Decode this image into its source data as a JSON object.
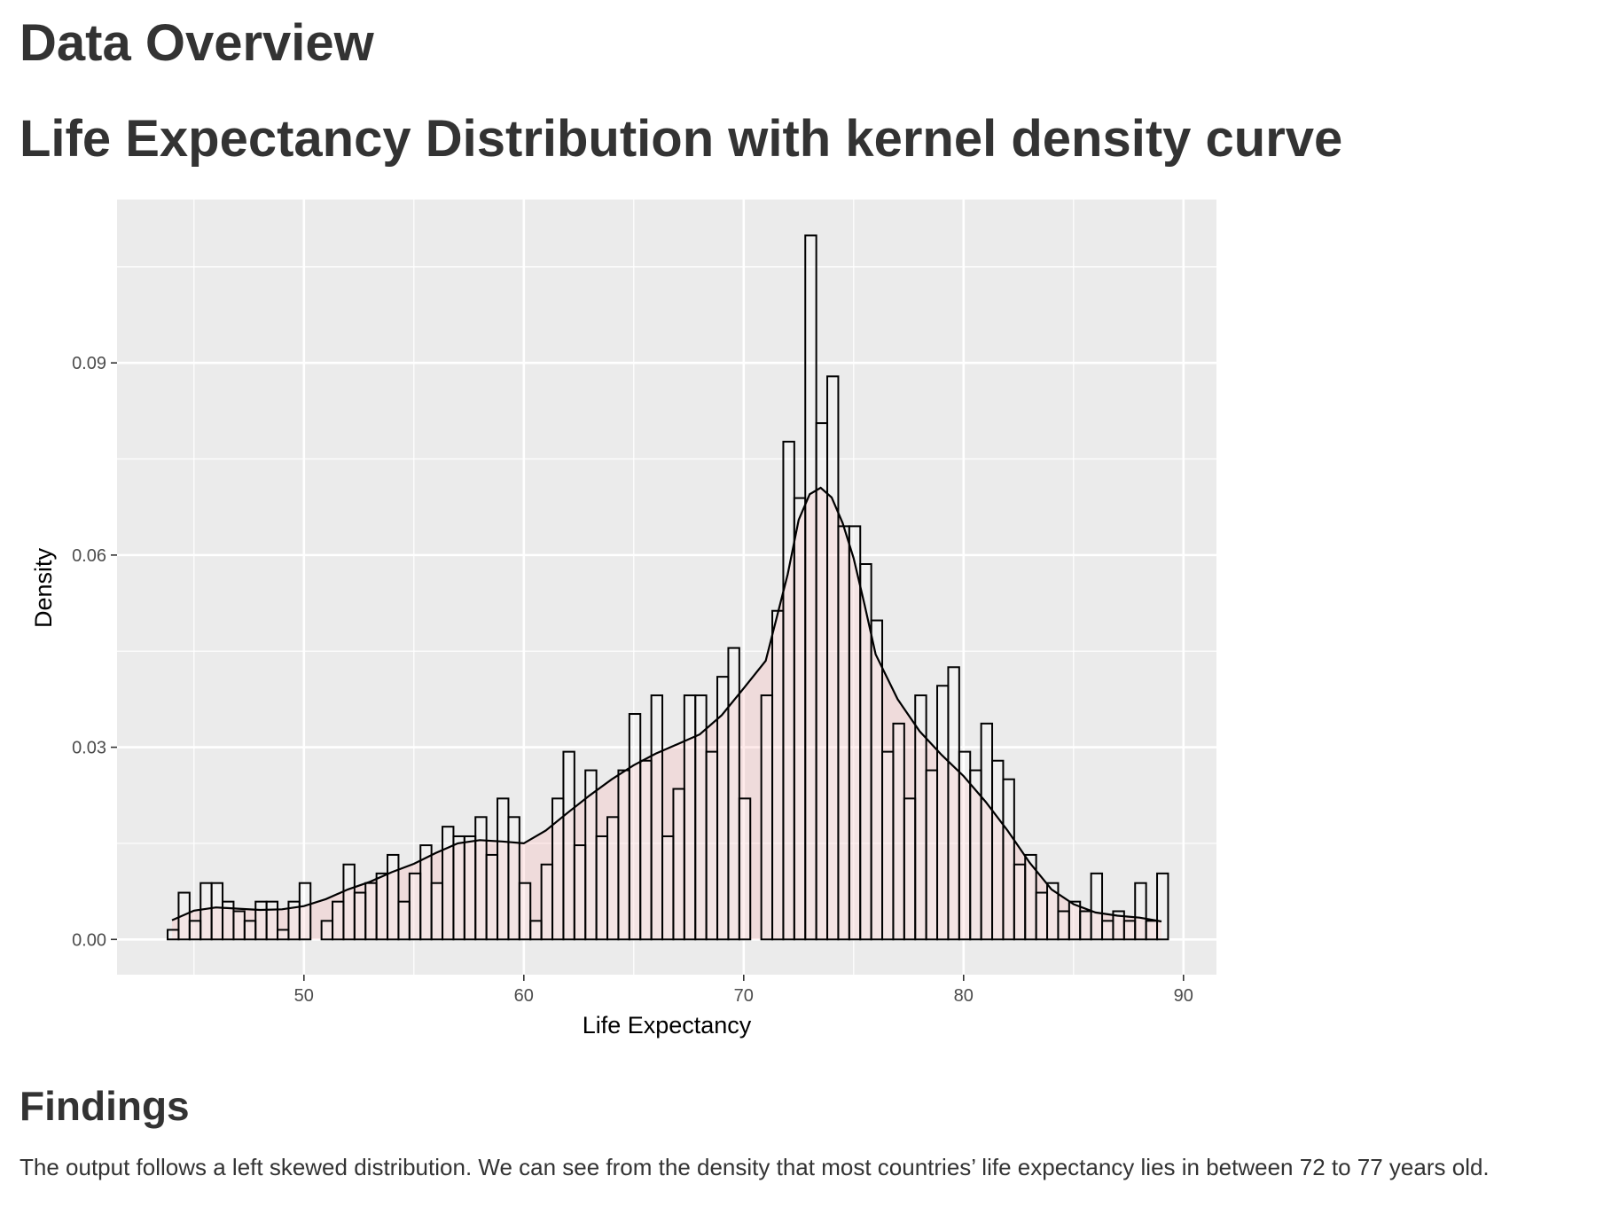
{
  "page": {
    "heading": "Data Overview",
    "chart_heading": "Life Expectancy Distribution with kernel density curve",
    "findings_heading": "Findings",
    "findings_text": "The output follows a left skewed distribution. We can see from the density that most countries’ life expectancy lies in between 72 to 77 years old."
  },
  "colors": {
    "panel": "#ebebeb",
    "grid": "#ffffff",
    "bar_fill": "#ffffff",
    "bar_stroke": "#000000",
    "density_fill": "#ff9999",
    "density_line": "#000000"
  },
  "chart_data": {
    "type": "histogram",
    "title": "Life Expectancy Distribution with kernel density curve",
    "xlabel": "Life Expectancy",
    "ylabel": "Density",
    "xlim": [
      41.5,
      91.5
    ],
    "ylim": [
      -0.0055,
      0.1155
    ],
    "x_ticks": [
      50,
      60,
      70,
      80,
      90
    ],
    "x_tick_labels": [
      "50",
      "60",
      "70",
      "80",
      "90"
    ],
    "y_ticks": [
      0.0,
      0.03,
      0.06,
      0.09
    ],
    "y_tick_labels": [
      "0.00",
      "0.03",
      "0.06",
      "0.09"
    ],
    "grid": true,
    "bin_start": 43.8,
    "bin_width": 0.5,
    "bin_density": [
      0.0015,
      0.0073,
      0.0029,
      0.0088,
      0.0088,
      0.0059,
      0.0044,
      0.0029,
      0.0059,
      0.0059,
      0.0015,
      0.0059,
      0.0088,
      0.0,
      0.0029,
      0.0059,
      0.0117,
      0.0073,
      0.0088,
      0.0103,
      0.0132,
      0.0059,
      0.0103,
      0.0147,
      0.0088,
      0.0176,
      0.0161,
      0.0161,
      0.0191,
      0.0132,
      0.022,
      0.0191,
      0.0088,
      0.0029,
      0.0117,
      0.022,
      0.0293,
      0.0147,
      0.0264,
      0.0161,
      0.0191,
      0.0264,
      0.0352,
      0.0279,
      0.0381,
      0.0161,
      0.0235,
      0.0381,
      0.0381,
      0.0293,
      0.041,
      0.0455,
      0.022,
      0.0,
      0.0381,
      0.0513,
      0.0777,
      0.0689,
      0.1099,
      0.0806,
      0.0879,
      0.0645,
      0.0645,
      0.0586,
      0.0498,
      0.0293,
      0.0337,
      0.022,
      0.0381,
      0.0264,
      0.0396,
      0.0425,
      0.0293,
      0.0264,
      0.0337,
      0.0279,
      0.025,
      0.0117,
      0.0132,
      0.0073,
      0.0088,
      0.0044,
      0.0059,
      0.0044,
      0.0103,
      0.0029,
      0.0044,
      0.0029,
      0.0088,
      0.0029,
      0.0103
    ],
    "density_curve": {
      "x": [
        44,
        45,
        46,
        47,
        48,
        49,
        50,
        51,
        52,
        53,
        54,
        55,
        56,
        57,
        58,
        59,
        60,
        61,
        62,
        63,
        64,
        65,
        66,
        67,
        68,
        69,
        70,
        71,
        72,
        72.5,
        73,
        73.5,
        74,
        74.5,
        75,
        75.5,
        76,
        77,
        78,
        79,
        80,
        81,
        82,
        83,
        84,
        85,
        86,
        87,
        88,
        89
      ],
      "y": [
        0.003,
        0.0045,
        0.005,
        0.0048,
        0.0046,
        0.0047,
        0.0052,
        0.0063,
        0.0078,
        0.009,
        0.0105,
        0.0118,
        0.0135,
        0.015,
        0.0155,
        0.0153,
        0.015,
        0.017,
        0.0198,
        0.0225,
        0.025,
        0.0272,
        0.029,
        0.0305,
        0.032,
        0.035,
        0.0392,
        0.0435,
        0.057,
        0.0655,
        0.0695,
        0.0705,
        0.069,
        0.065,
        0.0595,
        0.0522,
        0.0445,
        0.0375,
        0.0325,
        0.0288,
        0.0255,
        0.0215,
        0.017,
        0.012,
        0.0078,
        0.0055,
        0.0042,
        0.0037,
        0.0034,
        0.0028
      ]
    }
  }
}
